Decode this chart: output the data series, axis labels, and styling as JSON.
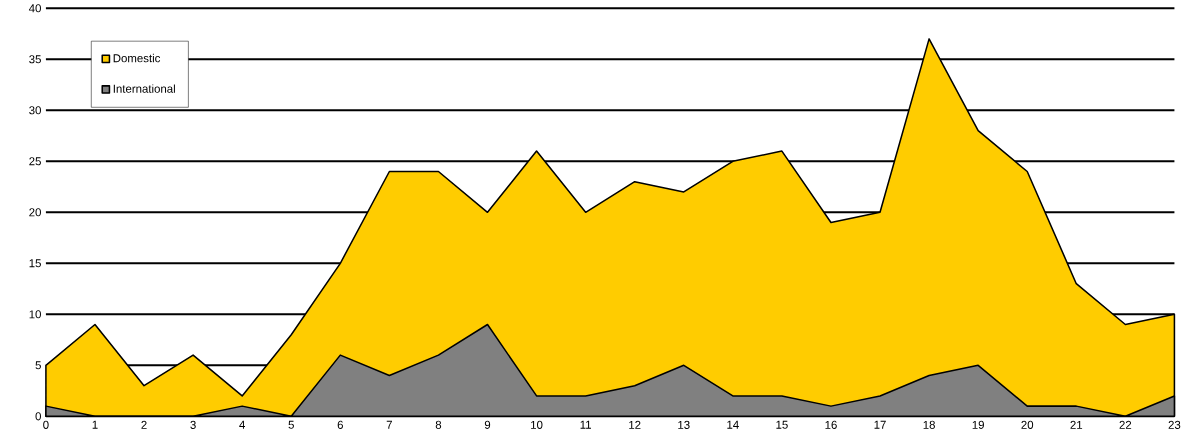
{
  "chart_data": {
    "type": "area",
    "x": [
      0,
      1,
      2,
      3,
      4,
      5,
      6,
      7,
      8,
      9,
      10,
      11,
      12,
      13,
      14,
      15,
      16,
      17,
      18,
      19,
      20,
      21,
      22,
      23
    ],
    "series": [
      {
        "name": "Domestic",
        "color": "#ffcc00",
        "values": [
          5,
          9,
          3,
          6,
          2,
          8,
          15,
          24,
          24,
          20,
          26,
          20,
          23,
          22,
          25,
          26,
          19,
          20,
          37,
          28,
          24,
          13,
          9,
          10
        ]
      },
      {
        "name": "International",
        "color": "#808080",
        "values": [
          1,
          0,
          0,
          0,
          1,
          0,
          6,
          4,
          6,
          9,
          2,
          2,
          3,
          5,
          2,
          2,
          1,
          2,
          4,
          5,
          1,
          1,
          0,
          2
        ]
      }
    ],
    "xlim": [
      0,
      23
    ],
    "xticks": [
      0,
      1,
      2,
      3,
      4,
      5,
      6,
      7,
      8,
      9,
      10,
      11,
      12,
      13,
      14,
      15,
      16,
      17,
      18,
      19,
      20,
      21,
      22,
      23
    ],
    "ylim": [
      0,
      40
    ],
    "yticks": [
      0,
      5,
      10,
      15,
      20,
      25,
      30,
      35,
      40
    ],
    "grid": "y",
    "legend": "top left"
  }
}
